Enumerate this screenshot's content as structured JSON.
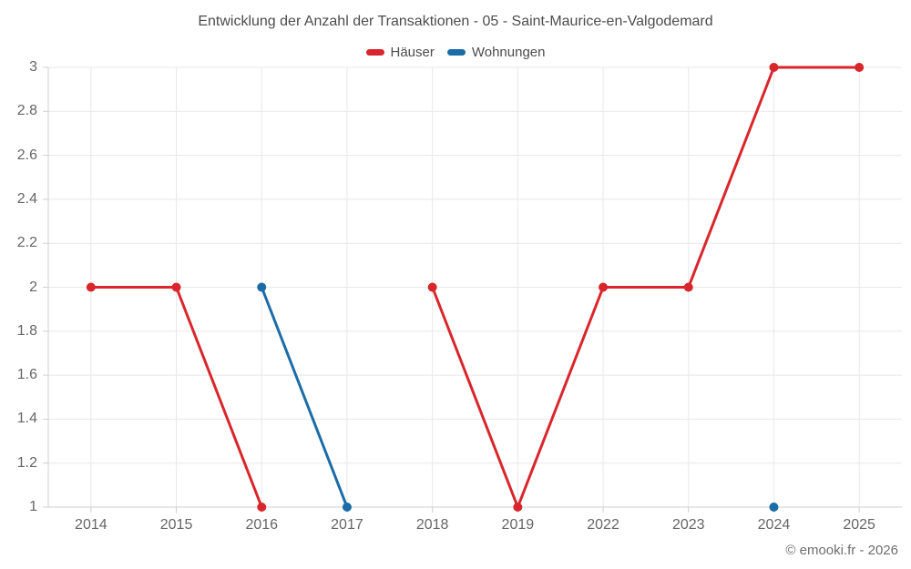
{
  "title": "Entwicklung der Anzahl der Transaktionen - 05 - Saint-Maurice-en-Valgodemard",
  "copyright": "© emooki.fr - 2026",
  "chart_data": {
    "type": "line",
    "title": "Entwicklung der Anzahl der Transaktionen - 05 - Saint-Maurice-en-Valgodemard",
    "categories": [
      "2014",
      "2015",
      "2016",
      "2017",
      "2018",
      "2019",
      "2022",
      "2023",
      "2024",
      "2025"
    ],
    "series": [
      {
        "name": "Häuser",
        "color": "#d9262c",
        "values": [
          2,
          2,
          1,
          null,
          2,
          1,
          2,
          2,
          3,
          3
        ]
      },
      {
        "name": "Wohnungen",
        "color": "#1b6ca8",
        "values": [
          null,
          null,
          2,
          1,
          null,
          null,
          null,
          null,
          1,
          null
        ]
      }
    ],
    "xlabel": "",
    "ylabel": "",
    "ylim": [
      1,
      3
    ],
    "ytick_step": 0.2,
    "ytick_labels": [
      "1",
      "1.2",
      "1.4",
      "1.6",
      "1.8",
      "2",
      "2.2",
      "2.4",
      "2.6",
      "2.8",
      "3"
    ],
    "grid": true,
    "legend_position": "top",
    "marker": "circle"
  }
}
